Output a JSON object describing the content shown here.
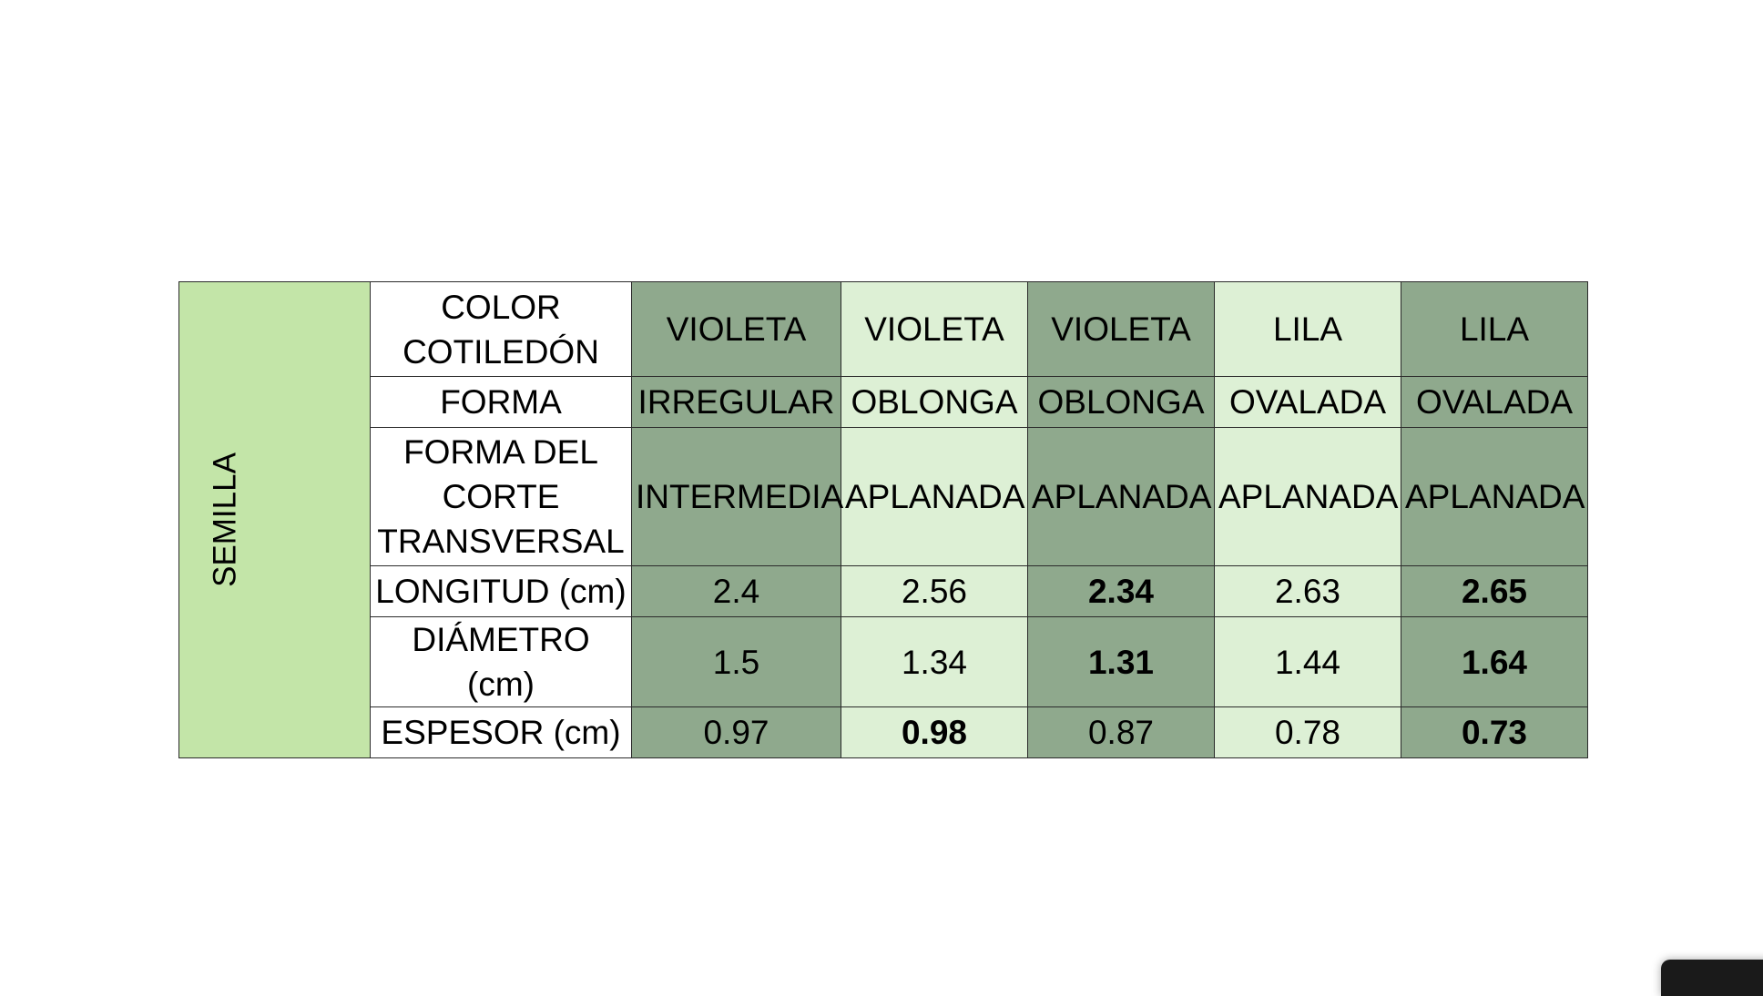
{
  "section_label": "SEMILLA",
  "rows": [
    {
      "label": "COLOR COTILEDÓN",
      "cells": [
        {
          "text": "VIOLETA",
          "bold": false
        },
        {
          "text": "VIOLETA",
          "bold": false
        },
        {
          "text": "VIOLETA",
          "bold": false
        },
        {
          "text": "LILA",
          "bold": false
        },
        {
          "text": "LILA",
          "bold": false
        }
      ]
    },
    {
      "label": "FORMA",
      "cells": [
        {
          "text": "IRREGULAR",
          "bold": false
        },
        {
          "text": "OBLONGA",
          "bold": false
        },
        {
          "text": "OBLONGA",
          "bold": false
        },
        {
          "text": "OVALADA",
          "bold": false
        },
        {
          "text": "OVALADA",
          "bold": false
        }
      ]
    },
    {
      "label": "FORMA DEL CORTE TRANSVERSAL",
      "cells": [
        {
          "text": "INTERMEDIA",
          "bold": false
        },
        {
          "text": "APLANADA",
          "bold": false
        },
        {
          "text": "APLANADA",
          "bold": false
        },
        {
          "text": "APLANADA",
          "bold": false
        },
        {
          "text": "APLANADA",
          "bold": false
        }
      ]
    },
    {
      "label": "LONGITUD (cm)",
      "cells": [
        {
          "text": "2.4",
          "bold": false
        },
        {
          "text": "2.56",
          "bold": false
        },
        {
          "text": "2.34",
          "bold": true
        },
        {
          "text": "2.63",
          "bold": false
        },
        {
          "text": "2.65",
          "bold": true
        }
      ]
    },
    {
      "label": "DIÁMETRO (cm)",
      "cells": [
        {
          "text": "1.5",
          "bold": false
        },
        {
          "text": "1.34",
          "bold": false
        },
        {
          "text": "1.31",
          "bold": true
        },
        {
          "text": "1.44",
          "bold": false
        },
        {
          "text": "1.64",
          "bold": true
        }
      ]
    },
    {
      "label": "ESPESOR (cm)",
      "cells": [
        {
          "text": "0.97",
          "bold": false
        },
        {
          "text": "0.98",
          "bold": true
        },
        {
          "text": "0.87",
          "bold": false
        },
        {
          "text": "0.78",
          "bold": false
        },
        {
          "text": "0.73",
          "bold": true
        }
      ]
    }
  ],
  "colors": {
    "section_fill": "#c3e5a8",
    "dark_column": "#8fa98d",
    "light_column": "#ddf0d5",
    "header_fill": "#ffffff"
  }
}
